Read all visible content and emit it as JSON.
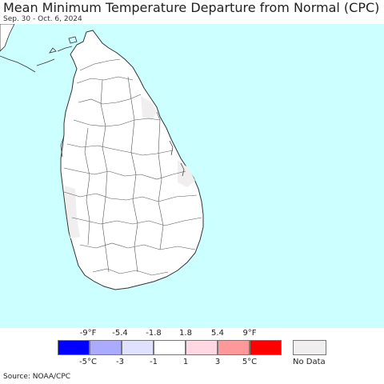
{
  "title": "Mean Minimum Temperature Departure from Normal (CPC)",
  "subtitle": "Sep. 30 - Oct. 6, 2024",
  "source": "Source: NOAA/CPC",
  "colors": {
    "ocean": "#ccffff",
    "land": "#ffffff",
    "no_data": "#f0eeee",
    "border": "#333333"
  },
  "legend": {
    "f_ticks": [
      "-9°F",
      "-5.4",
      "-1.8",
      "1.8",
      "5.4",
      "9°F"
    ],
    "c_ticks": [
      "-5°C",
      "-3",
      "-1",
      "1",
      "3",
      "5°C"
    ],
    "bins": [
      {
        "color": "#0000ff"
      },
      {
        "color": "#aaaaff"
      },
      {
        "color": "#e0e0ff"
      },
      {
        "color": "#ffffff"
      },
      {
        "color": "#ffd8e4"
      },
      {
        "color": "#ff9999"
      },
      {
        "color": "#ff0000"
      }
    ],
    "no_data_color": "#f0eeee",
    "no_data_label": "No Data"
  }
}
